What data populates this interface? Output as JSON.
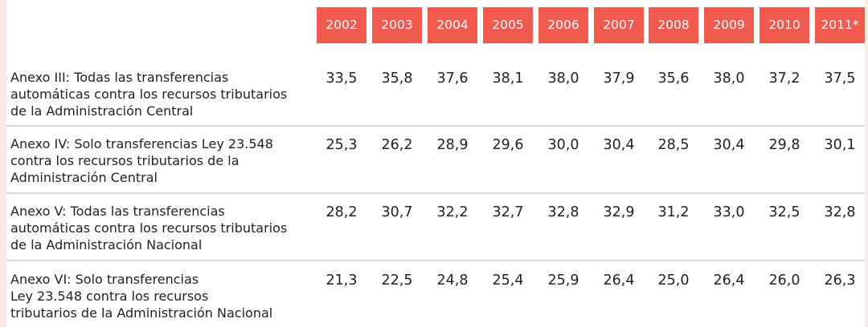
{
  "table": {
    "years": [
      "2002",
      "2003",
      "2004",
      "2005",
      "2006",
      "2007",
      "2008",
      "2009",
      "2010",
      "2011*"
    ],
    "rows": [
      {
        "label_lines": [
          "Anexo III: Todas las transferencias",
          "automáticas contra los recursos tributarios",
          "de la Administración Central"
        ],
        "values": [
          "33,5",
          "35,8",
          "37,6",
          "38,1",
          "38,0",
          "37,9",
          "35,6",
          "38,0",
          "37,2",
          "37,5"
        ]
      },
      {
        "label_lines": [
          "Anexo IV: Solo transferencias Ley 23.548",
          "contra los recursos tributarios de la",
          "Administración Central"
        ],
        "values": [
          "25,3",
          "26,2",
          "28,9",
          "29,6",
          "30,0",
          "30,4",
          "28,5",
          "30,4",
          "29,8",
          "30,1"
        ]
      },
      {
        "label_lines": [
          "Anexo V: Todas las transferencias",
          "automáticas contra los recursos tributarios",
          "de la Administración Nacional"
        ],
        "values": [
          "28,2",
          "30,7",
          "32,2",
          "32,7",
          "32,8",
          "32,9",
          "31,2",
          "33,0",
          "32,5",
          "32,8"
        ]
      },
      {
        "label_lines": [
          "Anexo VI: Solo transferencias",
          "Ley 23.548 contra los recursos",
          "tributarios de la Administración Nacional"
        ],
        "values": [
          "21,3",
          "22,5",
          "24,8",
          "25,4",
          "25,9",
          "26,4",
          "25,0",
          "26,4",
          "26,0",
          "26,3"
        ]
      }
    ]
  },
  "colors": {
    "header_bg": "#f05a4f",
    "header_text": "#ffffff",
    "page_border": "#fbe9e5",
    "divider": "#d8d8d8"
  }
}
